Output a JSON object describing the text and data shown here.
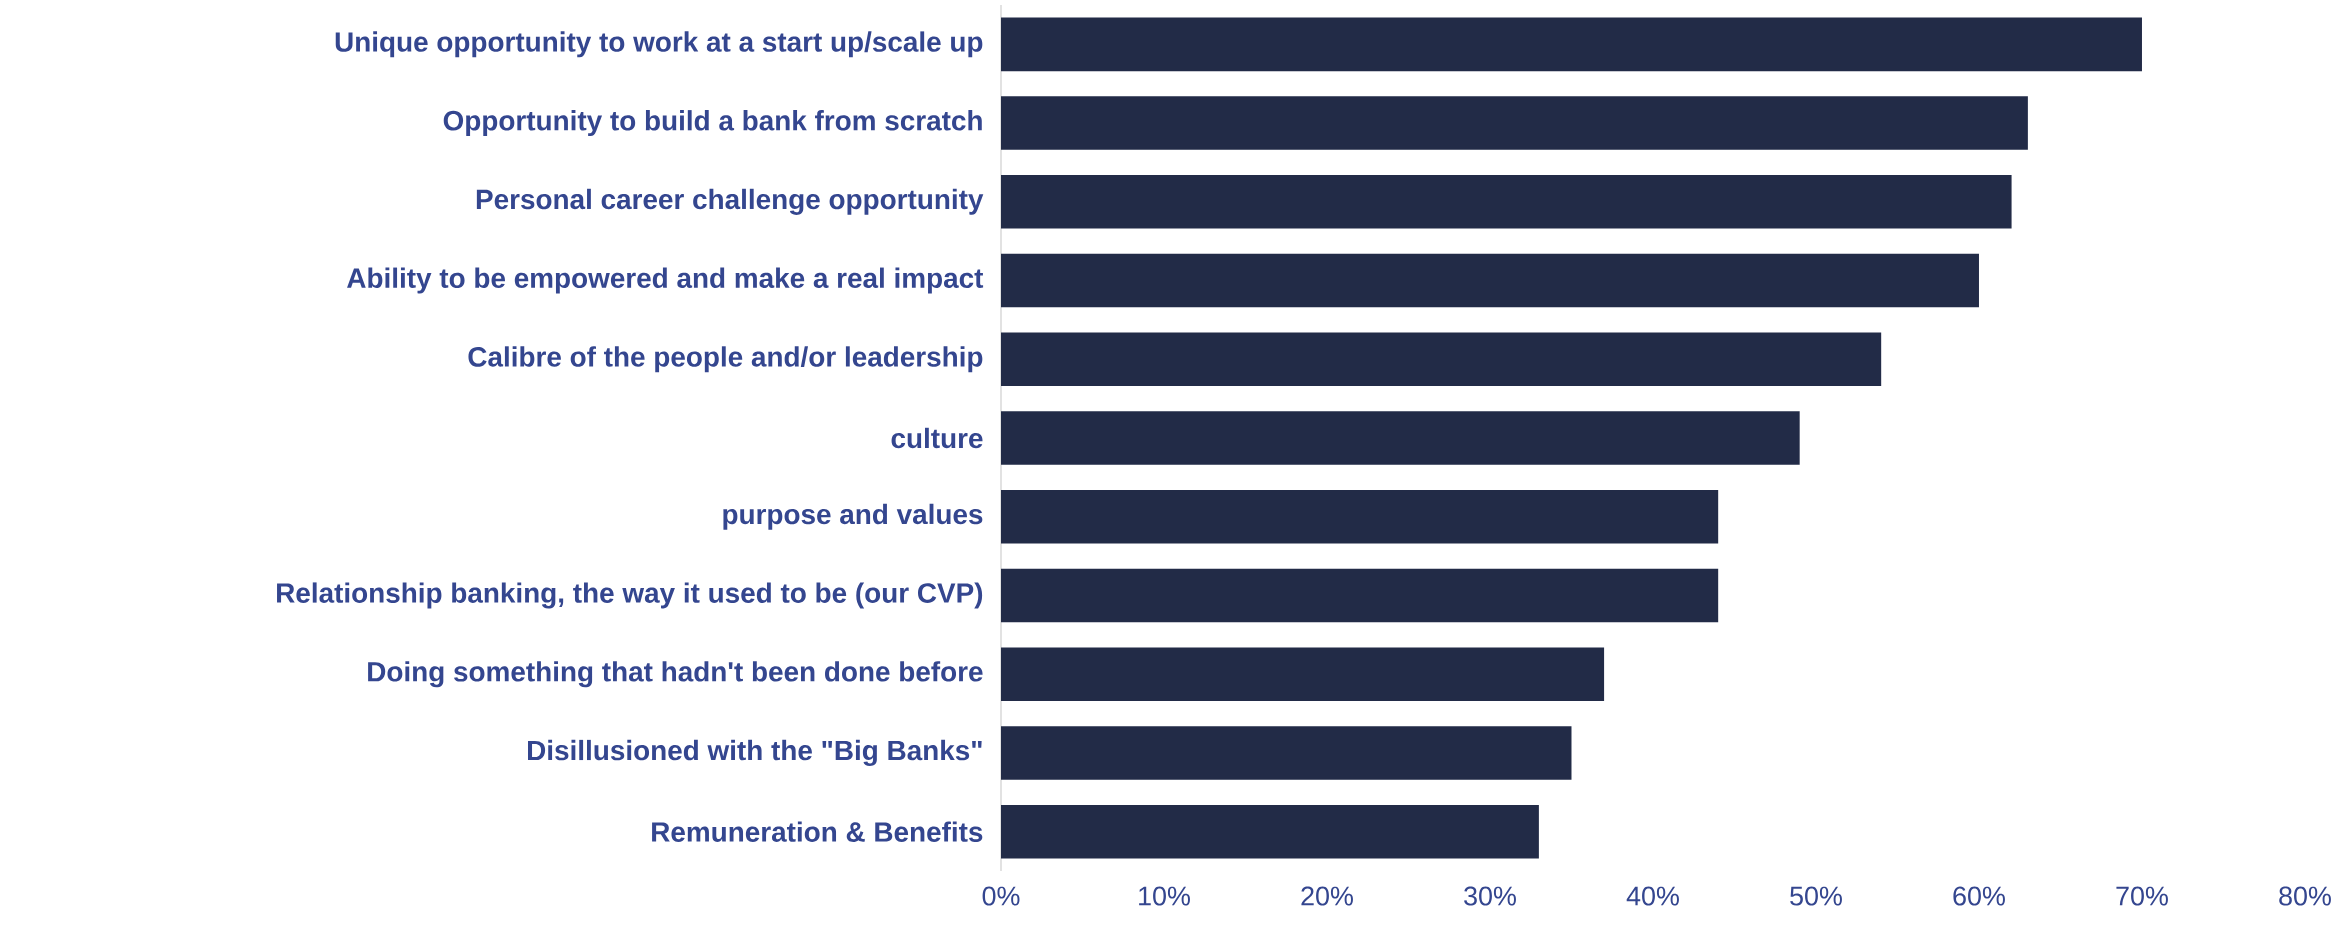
{
  "chart_data": {
    "type": "bar",
    "orientation": "horizontal",
    "color": "#222b47",
    "categories": [
      "Unique opportunity to work at a start up/scale up",
      "Opportunity to build a bank from scratch",
      "Personal career challenge opportunity",
      "Ability to be empowered and make a real impact",
      "Calibre of the people and/or leadership",
      "culture",
      "purpose and values",
      "Relationship banking, the way it used to be (our CVP)",
      "Doing something that hadn't been done before",
      "Disillusioned with the \"Big Banks\"",
      "Remuneration & Benefits"
    ],
    "values": [
      70,
      63,
      62,
      60,
      54,
      49,
      44,
      44,
      37,
      35,
      33
    ],
    "xlim": [
      0,
      80
    ],
    "xticks": [
      {
        "value": 0,
        "label": "0%"
      },
      {
        "value": 10,
        "label": "10%"
      },
      {
        "value": 20,
        "label": "20%"
      },
      {
        "value": 30,
        "label": "30%"
      },
      {
        "value": 40,
        "label": "40%"
      },
      {
        "value": 50,
        "label": "50%"
      },
      {
        "value": 60,
        "label": "60%"
      },
      {
        "value": 70,
        "label": "70%"
      },
      {
        "value": 80,
        "label": "80%"
      }
    ]
  }
}
